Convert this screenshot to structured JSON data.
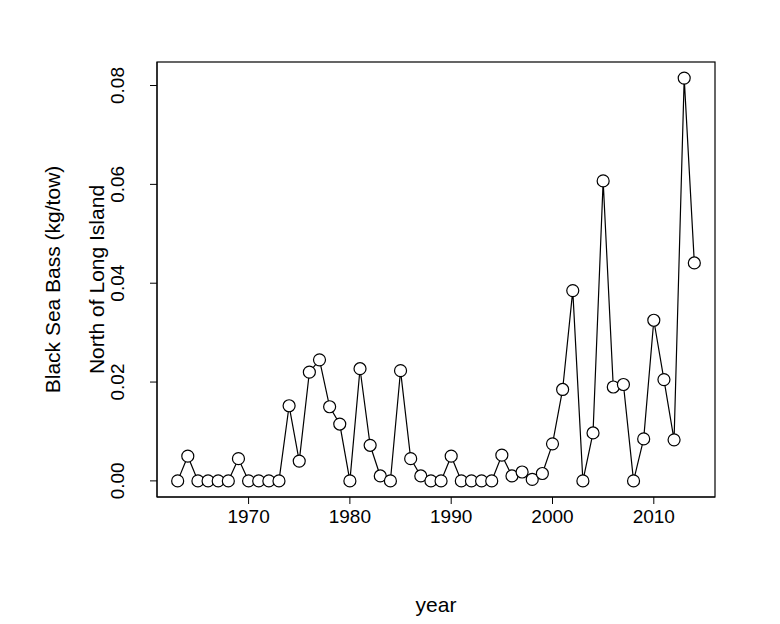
{
  "chart_data": {
    "type": "line",
    "xlabel": "year",
    "ylabel": [
      "Black Sea Bass (kg/tow)",
      "North of Long Island"
    ],
    "x": [
      1963,
      1964,
      1965,
      1966,
      1967,
      1968,
      1969,
      1970,
      1971,
      1972,
      1973,
      1974,
      1975,
      1976,
      1977,
      1978,
      1979,
      1980,
      1981,
      1982,
      1983,
      1984,
      1985,
      1986,
      1987,
      1988,
      1989,
      1990,
      1991,
      1992,
      1993,
      1994,
      1995,
      1996,
      1997,
      1998,
      1999,
      2000,
      2001,
      2002,
      2003,
      2004,
      2005,
      2006,
      2007,
      2008,
      2009,
      2010,
      2011,
      2012,
      2013,
      2014
    ],
    "values": [
      0,
      0.005,
      0,
      0,
      0,
      0,
      0.0045,
      0,
      0,
      0,
      0,
      0.0152,
      0.004,
      0.022,
      0.0245,
      0.015,
      0.0115,
      0,
      0.0227,
      0.0072,
      0.001,
      0,
      0.0223,
      0.0045,
      0.001,
      0,
      0,
      0.005,
      0,
      0,
      0,
      0,
      0.0052,
      0.001,
      0.0018,
      0.0003,
      0.0015,
      0.0075,
      0.0185,
      0.0385,
      0,
      0.0097,
      0.0607,
      0.019,
      0.0195,
      0,
      0.0085,
      0.0325,
      0.0205,
      0.0083,
      0.0815,
      0.0441
    ],
    "color": "#000000",
    "marker": "circle",
    "line_style": "solid",
    "xlim": [
      1960.96,
      2016.04
    ],
    "xticks": [
      1970,
      1980,
      1990,
      2000,
      2010
    ],
    "ylim": [
      -0.00326,
      0.08476
    ],
    "yticks": [
      {
        "value": 0,
        "label": "0.00"
      },
      {
        "value": 0.02,
        "label": "0.02"
      },
      {
        "value": 0.04,
        "label": "0.04"
      },
      {
        "value": 0.06,
        "label": "0.06"
      },
      {
        "value": 0.08,
        "label": "0.08"
      }
    ],
    "grid": false
  }
}
